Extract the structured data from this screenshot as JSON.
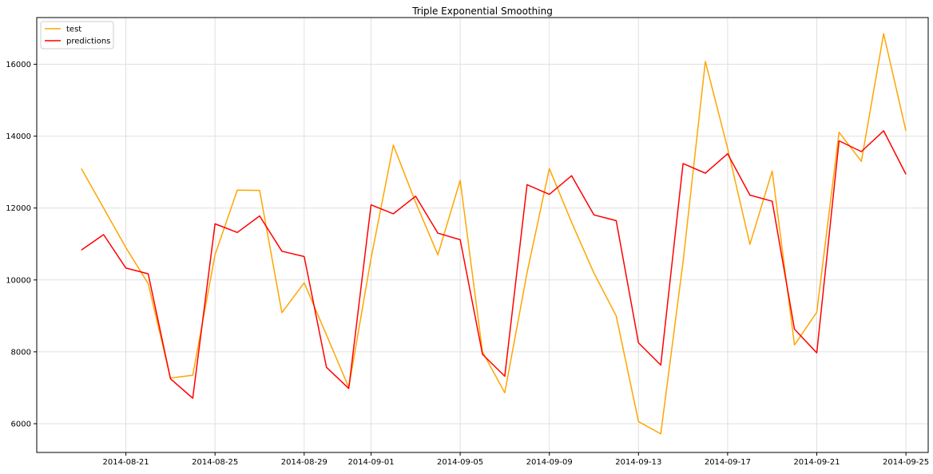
{
  "chart_data": {
    "type": "line",
    "title": "Triple Exponential Smoothing",
    "xlabel": "",
    "ylabel": "",
    "x": [
      "2014-08-19",
      "2014-08-20",
      "2014-08-21",
      "2014-08-22",
      "2014-08-23",
      "2014-08-24",
      "2014-08-25",
      "2014-08-26",
      "2014-08-27",
      "2014-08-28",
      "2014-08-29",
      "2014-08-30",
      "2014-08-31",
      "2014-09-01",
      "2014-09-02",
      "2014-09-03",
      "2014-09-04",
      "2014-09-05",
      "2014-09-06",
      "2014-09-07",
      "2014-09-08",
      "2014-09-09",
      "2014-09-10",
      "2014-09-11",
      "2014-09-12",
      "2014-09-13",
      "2014-09-14",
      "2014-09-15",
      "2014-09-16",
      "2014-09-17",
      "2014-09-18",
      "2014-09-19",
      "2014-09-20",
      "2014-09-21",
      "2014-09-22",
      "2014-09-23",
      "2014-09-24",
      "2014-09-25"
    ],
    "series": [
      {
        "name": "test",
        "color": "#ffa500",
        "values": [
          13100,
          12000,
          10900,
          9900,
          7270,
          7350,
          10700,
          12500,
          12490,
          9090,
          9920,
          8470,
          7010,
          10600,
          13750,
          12160,
          10700,
          12770,
          8000,
          6860,
          10200,
          13100,
          11600,
          10190,
          9000,
          6060,
          5720,
          10500,
          16080,
          13660,
          10990,
          13030,
          8190,
          9100,
          14110,
          13300,
          16850,
          14150
        ]
      },
      {
        "name": "predictions",
        "color": "#ff0000",
        "values": [
          10830,
          11260,
          10330,
          10170,
          7250,
          6710,
          11560,
          11320,
          11780,
          10800,
          10650,
          7570,
          6980,
          12090,
          11840,
          12330,
          11300,
          11120,
          7930,
          7320,
          12650,
          12380,
          12900,
          11810,
          11650,
          8250,
          7630,
          13240,
          12970,
          13510,
          12360,
          12190,
          8630,
          7970,
          13870,
          13570,
          14150,
          12940
        ]
      }
    ],
    "xticks": [
      "2014-08-21",
      "2014-08-25",
      "2014-08-29",
      "2014-09-01",
      "2014-09-05",
      "2014-09-09",
      "2014-09-13",
      "2014-09-17",
      "2014-09-21",
      "2014-09-25"
    ],
    "yticks": [
      6000,
      8000,
      10000,
      12000,
      14000,
      16000
    ],
    "ylim": [
      5200,
      17300
    ],
    "xlim": [
      "2014-08-17",
      "2014-09-26"
    ],
    "grid": true,
    "legend_position": "top-left"
  }
}
